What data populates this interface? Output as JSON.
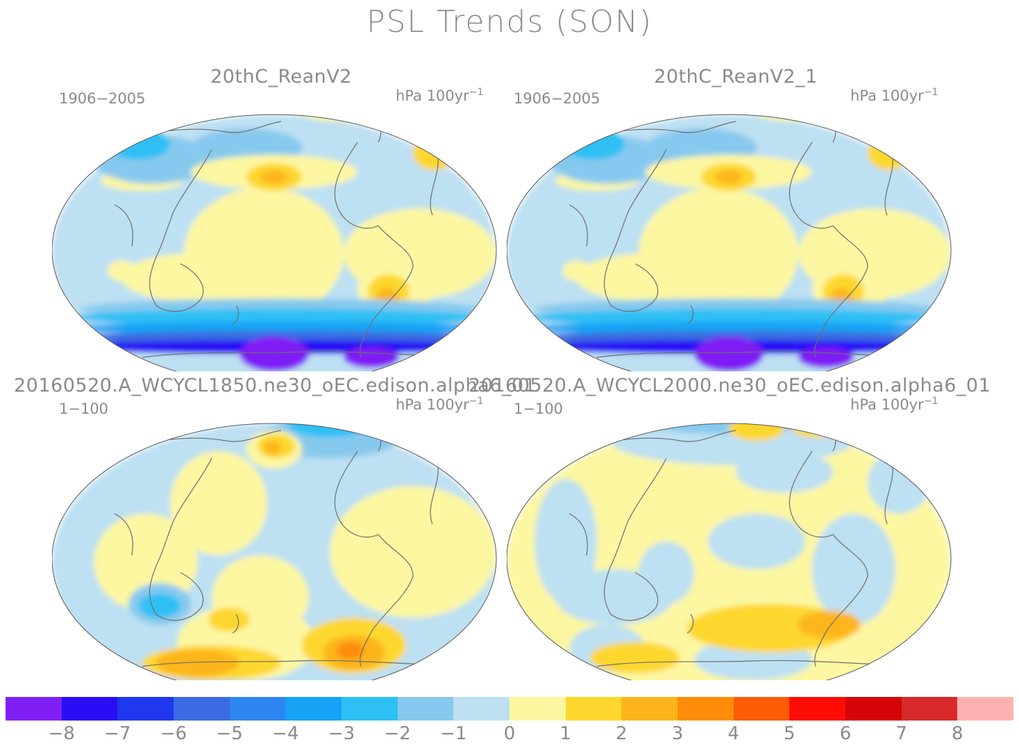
{
  "title": "PSL Trends (SON)",
  "panels": [
    {
      "title": "20thC_ReanV2",
      "period": "1906−2005",
      "units": "hPa 100yr",
      "units_exp": "−1",
      "pattern": "obs"
    },
    {
      "title": "20thC_ReanV2_1",
      "period": "1906−2005",
      "units": "hPa 100yr",
      "units_exp": "−1",
      "pattern": "obs"
    },
    {
      "title": "20160520.A_WCYCL1850.ne30_oEC.edison.alpha6_01",
      "period": "1−100",
      "units": "hPa 100yr",
      "units_exp": "−1",
      "pattern": "m1850"
    },
    {
      "title": "20160520.A_WCYCL2000.ne30_oEC.edison.alpha6_01",
      "period": "1−100",
      "units": "hPa 100yr",
      "units_exp": "−1",
      "pattern": "m2000"
    }
  ],
  "colorbar": {
    "colors": [
      "#7f1ff5",
      "#2a0df5",
      "#1f37ee",
      "#3a6be0",
      "#2e86f2",
      "#16a3f5",
      "#2ec0f5",
      "#87c9ee",
      "#bde0f2",
      "#fdf7a2",
      "#fed72e",
      "#fdb51b",
      "#fd8d08",
      "#fd5b06",
      "#fd0d06",
      "#d50406",
      "#d82a2a",
      "#fdb2b2"
    ],
    "labels": [
      "−8",
      "−7",
      "−6",
      "−5",
      "−4",
      "−3",
      "−2",
      "−1",
      "0",
      "1",
      "2",
      "3",
      "4",
      "5",
      "6",
      "7",
      "8"
    ]
  }
}
